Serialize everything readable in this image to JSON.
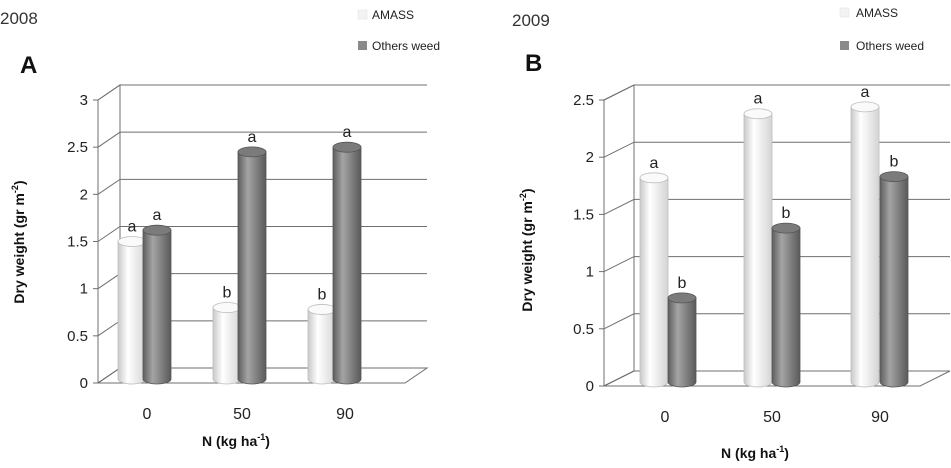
{
  "legend": {
    "amass": "AMASS",
    "others": "Others weed",
    "amass_color": "#f4f4f4",
    "others_color": "#8a8a8a"
  },
  "chart_data": [
    {
      "type": "bar",
      "panel": "A",
      "year": "2008",
      "xlabel": "N (kg ha-1)",
      "xlabel_main": "N (kg ha",
      "xlabel_sup": "-1",
      "xlabel_close": ")",
      "ylabel": "Dry weight (gr m-2)",
      "ylabel_main": "Dry weight (gr m",
      "ylabel_sup": "-2",
      "ylabel_close": ")",
      "ylim": [
        0,
        3
      ],
      "yticks": [
        "0",
        "0.5",
        "1",
        "1.5",
        "2",
        "2.5",
        "3"
      ],
      "categories": [
        "0",
        "50",
        "90"
      ],
      "series": [
        {
          "name": "AMASS",
          "values": [
            1.5,
            0.8,
            0.78
          ],
          "letters": [
            "a",
            "b",
            "b"
          ]
        },
        {
          "name": "Others weed",
          "values": [
            1.62,
            2.45,
            2.5
          ],
          "letters": [
            "a",
            "a",
            "a"
          ]
        }
      ],
      "grid": true,
      "legend_position": "top-right"
    },
    {
      "type": "bar",
      "panel": "B",
      "year": "2009",
      "xlabel": "N (kg ha-1)",
      "xlabel_main": "N (kg ha",
      "xlabel_sup": "-1",
      "xlabel_close": ")",
      "ylabel": "Dry weight (gr m-2)",
      "ylabel_main": "Dry weight (gr m",
      "ylabel_sup": "-2",
      "ylabel_close": ")",
      "ylim": [
        0,
        2.5
      ],
      "yticks": [
        "0",
        "0.5",
        "1",
        "1.5",
        "2",
        "2.5"
      ],
      "categories": [
        "0",
        "50",
        "90"
      ],
      "series": [
        {
          "name": "AMASS",
          "values": [
            1.82,
            2.38,
            2.44
          ],
          "letters": [
            "a",
            "a",
            "a"
          ]
        },
        {
          "name": "Others weed",
          "values": [
            0.77,
            1.38,
            1.83
          ],
          "letters": [
            "b",
            "b",
            "b"
          ]
        }
      ],
      "grid": true,
      "legend_position": "top-right"
    }
  ]
}
